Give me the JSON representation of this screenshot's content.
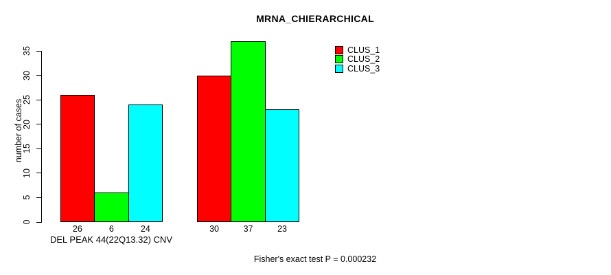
{
  "chart_data": {
    "type": "bar",
    "title": "MRNA_CHIERARCHICAL",
    "xlabel": "DEL PEAK 44(22Q13.32) CNV",
    "ylabel": "number of cases",
    "annotation": "Fisher's exact test P = 0.000232",
    "ylim": [
      0,
      35
    ],
    "yticks": [
      0,
      5,
      10,
      15,
      20,
      25,
      30,
      35
    ],
    "grid": false,
    "legend_position": "top-right",
    "background_color": "#ffffff",
    "axis_color": "#000000",
    "series": [
      {
        "name": "CLUS_1",
        "color": "#ff0000",
        "values": [
          26,
          30
        ]
      },
      {
        "name": "CLUS_2",
        "color": "#00ff00",
        "values": [
          6,
          37
        ]
      },
      {
        "name": "CLUS_3",
        "color": "#00ffff",
        "values": [
          24,
          23
        ]
      }
    ],
    "bar_value_labels": [
      [
        "26",
        "6",
        "24"
      ],
      [
        "30",
        "37",
        "23"
      ]
    ]
  }
}
